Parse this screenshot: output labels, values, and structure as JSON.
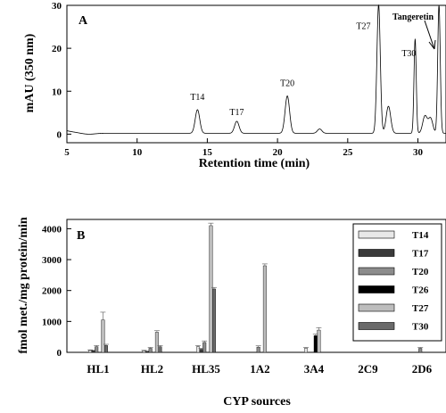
{
  "chart_data": [
    {
      "type": "line",
      "panel_label": "A",
      "xlabel": "Retention time (min)",
      "ylabel": "mAU (350 nm)",
      "xlim": [
        5,
        32
      ],
      "ylim": [
        -2,
        30
      ],
      "x_ticks": [
        5,
        10,
        15,
        20,
        25,
        30
      ],
      "y_ticks": [
        0,
        10,
        20,
        30
      ],
      "peaks": [
        {
          "label": "T14",
          "x": 14.3,
          "y": 5.5
        },
        {
          "label": "T17",
          "x": 17.1,
          "y": 2.8
        },
        {
          "label": "T20",
          "x": 20.7,
          "y": 8.7
        },
        {
          "label": "T27",
          "x": 27.2,
          "y": 30
        },
        {
          "label": "T30",
          "x": 29.8,
          "y": 22
        },
        {
          "label": "Tangeretin",
          "x": 31.5,
          "y": 30
        }
      ],
      "minor_peaks": [
        {
          "x": 23.0,
          "y": 1.0
        },
        {
          "x": 27.9,
          "y": 6.3
        },
        {
          "x": 30.5,
          "y": 4.0
        },
        {
          "x": 30.9,
          "y": 3.5
        }
      ]
    },
    {
      "type": "bar",
      "panel_label": "B",
      "xlabel": "CYP sources",
      "ylabel": "fmol met./mg protein/min",
      "ylim": [
        0,
        4300
      ],
      "y_ticks": [
        0,
        1000,
        2000,
        3000,
        4000
      ],
      "categories": [
        "HL1",
        "HL2",
        "HL35",
        "1A2",
        "3A4",
        "2C9",
        "2D6"
      ],
      "series": [
        {
          "name": "T14",
          "color": "#e8e8e8",
          "values": [
            60,
            50,
            180,
            0,
            130,
            0,
            0
          ],
          "errors": [
            20,
            15,
            40,
            0,
            30,
            0,
            0
          ]
        },
        {
          "name": "T17",
          "color": "#3a3a3a",
          "values": [
            50,
            30,
            100,
            0,
            0,
            0,
            0
          ],
          "errors": [
            15,
            10,
            30,
            0,
            0,
            0,
            0
          ]
        },
        {
          "name": "T20",
          "color": "#8c8c8c",
          "values": [
            180,
            130,
            320,
            170,
            0,
            0,
            130
          ],
          "errors": [
            40,
            30,
            50,
            40,
            0,
            0,
            30
          ]
        },
        {
          "name": "T26",
          "color": "#000000",
          "values": [
            0,
            0,
            0,
            0,
            540,
            0,
            0
          ],
          "errors": [
            0,
            0,
            0,
            0,
            50,
            0,
            0
          ]
        },
        {
          "name": "T27",
          "color": "#bdbdbd",
          "values": [
            1050,
            650,
            4100,
            2800,
            720,
            0,
            0
          ],
          "errors": [
            250,
            50,
            80,
            60,
            80,
            0,
            0
          ]
        },
        {
          "name": "T30",
          "color": "#6a6a6a",
          "values": [
            220,
            180,
            2050,
            0,
            0,
            0,
            0
          ],
          "errors": [
            40,
            40,
            50,
            0,
            0,
            0,
            0
          ]
        }
      ]
    }
  ]
}
